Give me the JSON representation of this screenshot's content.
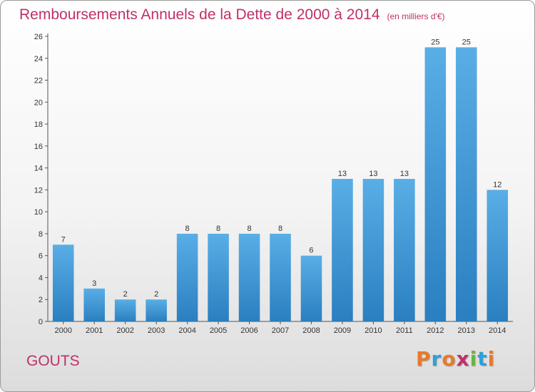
{
  "header": {
    "title": "Remboursements Annuels de la Dette de 2000 à 2014",
    "unit": "(en milliers d'€)"
  },
  "footer": {
    "commune": "GOUTS",
    "logo_text": "Proxiti",
    "logo_colors": [
      "#e8792b",
      "#2f9fd8",
      "#e8792b",
      "#c0306a",
      "#6cb33f",
      "#2f9fd8",
      "#e8792b"
    ]
  },
  "colors": {
    "bar_top": "#5aaee6",
    "bar_bottom": "#2a7fc0",
    "title": "#c0306a"
  },
  "chart_data": {
    "type": "bar",
    "title": "Remboursements Annuels de la Dette de 2000 à 2014",
    "xlabel": "",
    "ylabel": "",
    "categories": [
      "2000",
      "2001",
      "2002",
      "2003",
      "2004",
      "2005",
      "2006",
      "2007",
      "2008",
      "2009",
      "2010",
      "2011",
      "2012",
      "2013",
      "2014"
    ],
    "values": [
      7,
      3,
      2,
      2,
      8,
      8,
      8,
      8,
      6,
      13,
      13,
      13,
      25,
      25,
      12
    ],
    "ylim": [
      0,
      26
    ],
    "yticks": [
      0,
      2,
      4,
      6,
      8,
      10,
      12,
      14,
      16,
      18,
      20,
      22,
      24,
      26
    ],
    "grid": false,
    "legend": "none"
  }
}
